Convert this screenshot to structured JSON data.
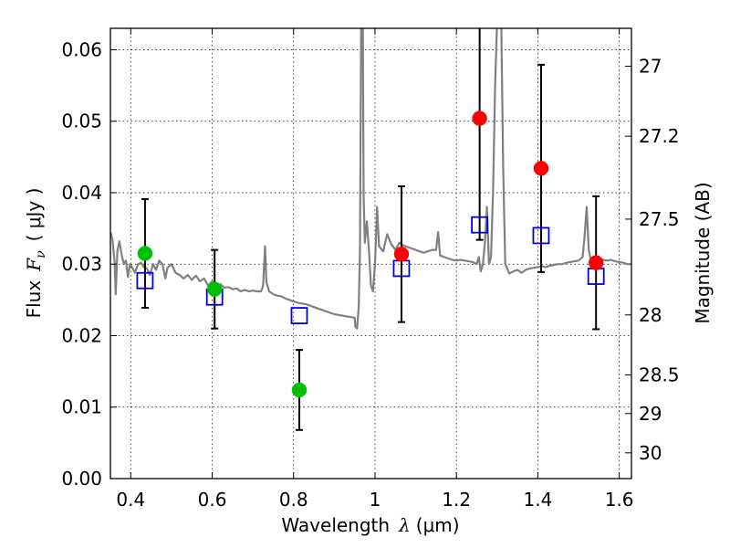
{
  "chart_data": {
    "type": "scatter",
    "xlabel": "Wavelength",
    "xlabel_sym": "λ",
    "xlabel_unit": "(μm)",
    "ylabel": "Flux",
    "ylabel_sym": "F",
    "ylabel_sub": "ν",
    "ylabel_unit": "( μJy )",
    "y2label": "Magnitude (AB)",
    "xlim": [
      0.35,
      1.63
    ],
    "ylim": [
      0.0,
      0.063
    ],
    "grid": true,
    "xticks": [
      0.4,
      0.6,
      0.8,
      1.0,
      1.2,
      1.4,
      1.6
    ],
    "xtick_labels": [
      "0.4",
      "0.6",
      "0.8",
      "1",
      "1.2",
      "1.4",
      "1.6"
    ],
    "yticks": [
      0.0,
      0.01,
      0.02,
      0.03,
      0.04,
      0.05,
      0.06
    ],
    "ytick_labels": [
      "0.00",
      "0.01",
      "0.02",
      "0.03",
      "0.04",
      "0.05",
      "0.06"
    ],
    "y2ticks": [
      {
        "label": "27",
        "flux": 0.0577
      },
      {
        "label": "27.2",
        "flux": 0.0479
      },
      {
        "label": "27.5",
        "flux": 0.0363
      },
      {
        "label": "28",
        "flux": 0.0229
      },
      {
        "label": "28.5",
        "flux": 0.0145
      },
      {
        "label": "29",
        "flux": 0.0091
      },
      {
        "label": "30",
        "flux": 0.0036
      }
    ],
    "colors": {
      "spectrum": "#808080",
      "green": "#00c000",
      "red": "#ff0000",
      "model": "#0000dd",
      "errorbar": "#000000"
    },
    "series": [
      {
        "marker": "circle",
        "color": "green",
        "points": [
          {
            "x": 0.435,
            "y": 0.0315,
            "err": 0.0076
          },
          {
            "x": 0.606,
            "y": 0.0265,
            "err": 0.0055
          },
          {
            "x": 0.814,
            "y": 0.0124,
            "err": 0.0056
          }
        ]
      },
      {
        "marker": "circle",
        "color": "red",
        "points": [
          {
            "x": 1.065,
            "y": 0.0314,
            "err": 0.0095
          },
          {
            "x": 1.257,
            "y": 0.0504,
            "err": 0.017
          },
          {
            "x": 1.408,
            "y": 0.0434,
            "err": 0.0145
          },
          {
            "x": 1.543,
            "y": 0.0302,
            "err": 0.0093
          }
        ]
      },
      {
        "marker": "open-square",
        "color": "model",
        "points": [
          {
            "x": 0.435,
            "y": 0.0277
          },
          {
            "x": 0.606,
            "y": 0.0254
          },
          {
            "x": 0.814,
            "y": 0.0228
          },
          {
            "x": 1.065,
            "y": 0.0294
          },
          {
            "x": 1.257,
            "y": 0.0355
          },
          {
            "x": 1.408,
            "y": 0.034
          },
          {
            "x": 1.543,
            "y": 0.0283
          }
        ]
      }
    ],
    "spectrum": [
      [
        0.35,
        0.0345
      ],
      [
        0.355,
        0.0335
      ],
      [
        0.36,
        0.0305
      ],
      [
        0.363,
        0.0258
      ],
      [
        0.367,
        0.0318
      ],
      [
        0.372,
        0.0332
      ],
      [
        0.378,
        0.0312
      ],
      [
        0.383,
        0.03
      ],
      [
        0.388,
        0.0305
      ],
      [
        0.393,
        0.0282
      ],
      [
        0.398,
        0.03
      ],
      [
        0.403,
        0.0296
      ],
      [
        0.41,
        0.0288
      ],
      [
        0.418,
        0.03
      ],
      [
        0.425,
        0.0302
      ],
      [
        0.432,
        0.0296
      ],
      [
        0.44,
        0.0294
      ],
      [
        0.447,
        0.0285
      ],
      [
        0.455,
        0.03
      ],
      [
        0.462,
        0.0292
      ],
      [
        0.47,
        0.0305
      ],
      [
        0.478,
        0.03
      ],
      [
        0.485,
        0.028
      ],
      [
        0.49,
        0.0295
      ],
      [
        0.5,
        0.03
      ],
      [
        0.51,
        0.0288
      ],
      [
        0.52,
        0.0285
      ],
      [
        0.53,
        0.028
      ],
      [
        0.54,
        0.0285
      ],
      [
        0.55,
        0.0278
      ],
      [
        0.56,
        0.0284
      ],
      [
        0.57,
        0.0276
      ],
      [
        0.58,
        0.028
      ],
      [
        0.59,
        0.027
      ],
      [
        0.6,
        0.0276
      ],
      [
        0.61,
        0.027
      ],
      [
        0.62,
        0.0272
      ],
      [
        0.63,
        0.0267
      ],
      [
        0.64,
        0.0268
      ],
      [
        0.65,
        0.0265
      ],
      [
        0.66,
        0.0266
      ],
      [
        0.67,
        0.0262
      ],
      [
        0.68,
        0.0264
      ],
      [
        0.69,
        0.0262
      ],
      [
        0.7,
        0.0263
      ],
      [
        0.71,
        0.0262
      ],
      [
        0.72,
        0.0262
      ],
      [
        0.725,
        0.027
      ],
      [
        0.73,
        0.0325
      ],
      [
        0.733,
        0.0275
      ],
      [
        0.74,
        0.0262
      ],
      [
        0.75,
        0.0258
      ],
      [
        0.76,
        0.0256
      ],
      [
        0.77,
        0.0255
      ],
      [
        0.78,
        0.0252
      ],
      [
        0.79,
        0.025
      ],
      [
        0.8,
        0.0248
      ],
      [
        0.81,
        0.0246
      ],
      [
        0.82,
        0.0245
      ],
      [
        0.83,
        0.0244
      ],
      [
        0.84,
        0.0242
      ],
      [
        0.85,
        0.024
      ],
      [
        0.86,
        0.0238
      ],
      [
        0.87,
        0.0236
      ],
      [
        0.88,
        0.0234
      ],
      [
        0.89,
        0.0232
      ],
      [
        0.9,
        0.023
      ],
      [
        0.91,
        0.0229
      ],
      [
        0.92,
        0.0228
      ],
      [
        0.93,
        0.0227
      ],
      [
        0.94,
        0.0226
      ],
      [
        0.95,
        0.0225
      ],
      [
        0.952,
        0.0212
      ],
      [
        0.956,
        0.021
      ],
      [
        0.96,
        0.024
      ],
      [
        0.963,
        0.032
      ],
      [
        0.966,
        0.064
      ],
      [
        0.97,
        0.064
      ],
      [
        0.972,
        0.0395
      ],
      [
        0.975,
        0.033
      ],
      [
        0.98,
        0.036
      ],
      [
        0.985,
        0.032
      ],
      [
        0.99,
        0.027
      ],
      [
        0.995,
        0.0262
      ],
      [
        1.0,
        0.03
      ],
      [
        1.005,
        0.038
      ],
      [
        1.01,
        0.0325
      ],
      [
        1.02,
        0.0318
      ],
      [
        1.03,
        0.0342
      ],
      [
        1.04,
        0.0328
      ],
      [
        1.05,
        0.032
      ],
      [
        1.06,
        0.033
      ],
      [
        1.07,
        0.0326
      ],
      [
        1.08,
        0.0324
      ],
      [
        1.09,
        0.0322
      ],
      [
        1.1,
        0.032
      ],
      [
        1.11,
        0.0318
      ],
      [
        1.12,
        0.0316
      ],
      [
        1.13,
        0.0318
      ],
      [
        1.14,
        0.032
      ],
      [
        1.15,
        0.032
      ],
      [
        1.155,
        0.0345
      ],
      [
        1.16,
        0.0312
      ],
      [
        1.17,
        0.031
      ],
      [
        1.18,
        0.0308
      ],
      [
        1.19,
        0.0306
      ],
      [
        1.2,
        0.0305
      ],
      [
        1.21,
        0.0306
      ],
      [
        1.22,
        0.0305
      ],
      [
        1.23,
        0.0304
      ],
      [
        1.24,
        0.0303
      ],
      [
        1.25,
        0.03
      ],
      [
        1.255,
        0.031
      ],
      [
        1.26,
        0.029
      ],
      [
        1.265,
        0.03
      ],
      [
        1.27,
        0.033
      ],
      [
        1.275,
        0.038
      ],
      [
        1.28,
        0.03
      ],
      [
        1.285,
        0.031
      ],
      [
        1.29,
        0.04
      ],
      [
        1.295,
        0.055
      ],
      [
        1.3,
        0.064
      ],
      [
        1.31,
        0.064
      ],
      [
        1.315,
        0.043
      ],
      [
        1.32,
        0.03
      ],
      [
        1.33,
        0.0287
      ],
      [
        1.34,
        0.029
      ],
      [
        1.35,
        0.0292
      ],
      [
        1.36,
        0.0288
      ],
      [
        1.37,
        0.0292
      ],
      [
        1.38,
        0.0294
      ],
      [
        1.39,
        0.0295
      ],
      [
        1.4,
        0.0296
      ],
      [
        1.41,
        0.0297
      ],
      [
        1.42,
        0.0296
      ],
      [
        1.43,
        0.0298
      ],
      [
        1.44,
        0.0299
      ],
      [
        1.45,
        0.03
      ],
      [
        1.46,
        0.03
      ],
      [
        1.47,
        0.0302
      ],
      [
        1.48,
        0.0303
      ],
      [
        1.49,
        0.0304
      ],
      [
        1.5,
        0.0305
      ],
      [
        1.51,
        0.031
      ],
      [
        1.515,
        0.034
      ],
      [
        1.52,
        0.038
      ],
      [
        1.525,
        0.032
      ],
      [
        1.53,
        0.0307
      ],
      [
        1.54,
        0.0306
      ],
      [
        1.55,
        0.0308
      ],
      [
        1.56,
        0.0306
      ],
      [
        1.57,
        0.0305
      ],
      [
        1.58,
        0.0306
      ],
      [
        1.59,
        0.0304
      ],
      [
        1.6,
        0.0303
      ],
      [
        1.61,
        0.0302
      ],
      [
        1.62,
        0.03
      ],
      [
        1.63,
        0.03
      ]
    ]
  }
}
